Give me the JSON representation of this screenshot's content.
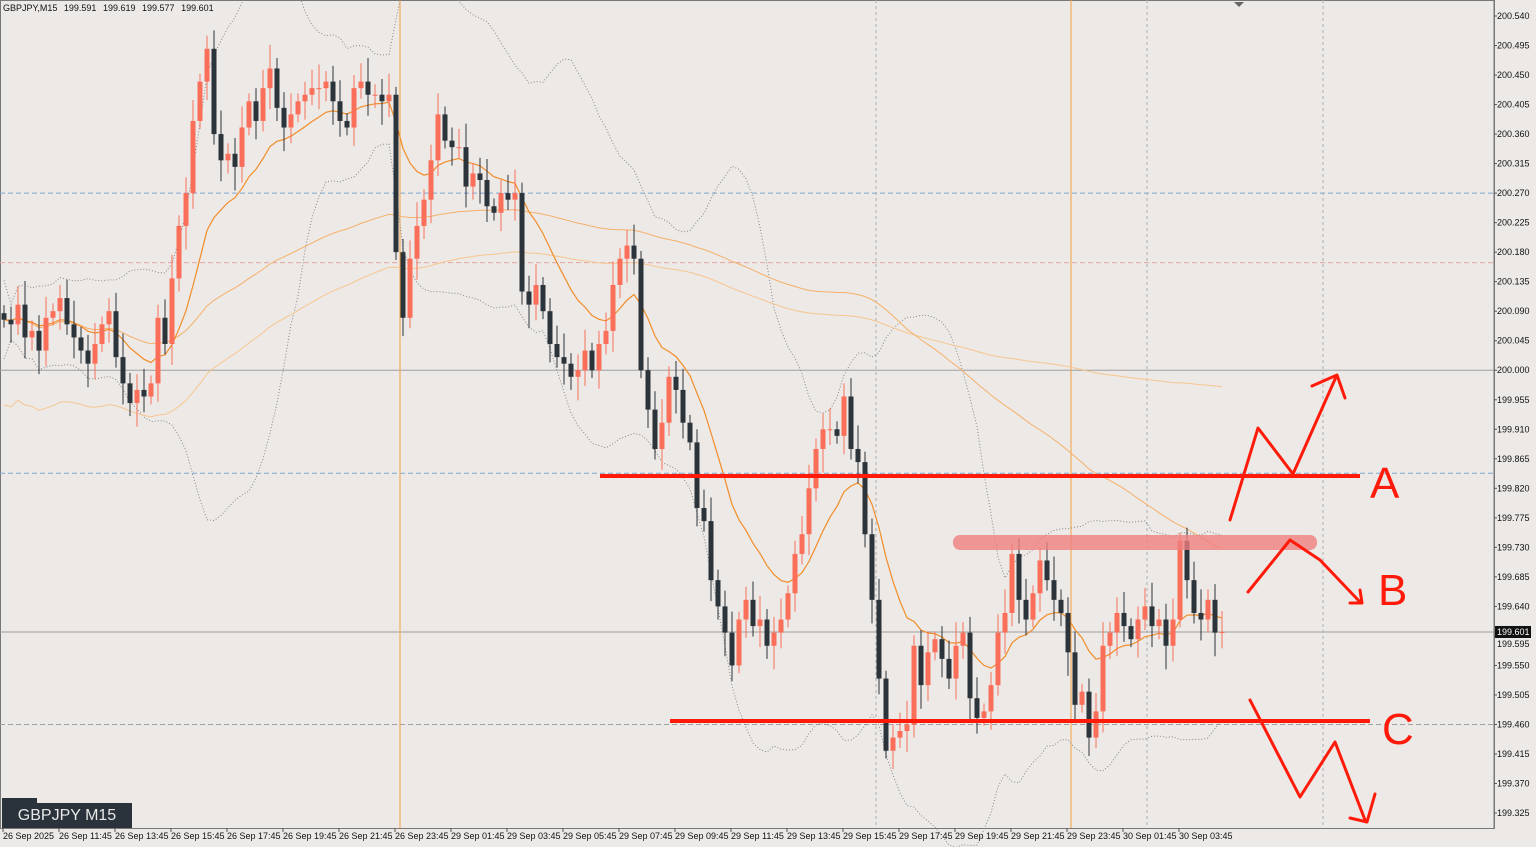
{
  "header": {
    "symbol": "GBPJPY,M15",
    "open": "199.591",
    "high": "199.619",
    "low": "199.577",
    "close": "199.601"
  },
  "badge": "GBPJPY M15",
  "colors": {
    "background": "#ece9e6",
    "bull": "#fa6e5a",
    "bear": "#2b333b",
    "ema_fast": "#f28c28",
    "ma_slow": "#f6b06a",
    "ma_slower": "#f8c58f",
    "bollinger": "#888888",
    "drawing": "#ff1a0a",
    "resistance_zone": "#f08080",
    "hline_blue": "#7fa6d6",
    "hline_pink": "#e4a5a5",
    "vline_orange": "#f5a040"
  },
  "chart_data": {
    "type": "candlestick",
    "timeframe": "M15",
    "ylim": [
      199.325,
      200.54
    ],
    "yticks": [
      "200.540",
      "200.495",
      "200.450",
      "200.405",
      "200.360",
      "200.315",
      "200.270",
      "200.225",
      "200.180",
      "200.135",
      "200.090",
      "200.045",
      "200.000",
      "199.955",
      "199.910",
      "199.865",
      "199.820",
      "199.775",
      "199.730",
      "199.685",
      "199.640",
      "199.595",
      "199.550",
      "199.505",
      "199.460",
      "199.415",
      "199.370",
      "199.325"
    ],
    "xticks": [
      "26 Sep 2025",
      "26 Sep 11:45",
      "26 Sep 13:45",
      "26 Sep 15:45",
      "26 Sep 17:45",
      "26 Sep 19:45",
      "26 Sep 21:45",
      "26 Sep 23:45",
      "29 Sep 01:45",
      "29 Sep 03:45",
      "29 Sep 05:45",
      "29 Sep 07:45",
      "29 Sep 09:45",
      "29 Sep 11:45",
      "29 Sep 13:45",
      "29 Sep 15:45",
      "29 Sep 17:45",
      "29 Sep 19:45",
      "29 Sep 21:45",
      "29 Sep 23:45",
      "30 Sep 01:45",
      "30 Sep 03:45"
    ],
    "current_price": "199.601",
    "closes": [
      200.077,
      200.07,
      200.1,
      200.05,
      200.06,
      200.03,
      200.08,
      200.09,
      200.11,
      200.07,
      200.05,
      200.03,
      200.01,
      200.04,
      200.07,
      200.09,
      200.02,
      199.98,
      199.95,
      199.97,
      199.96,
      199.98,
      200.08,
      200.04,
      200.14,
      200.22,
      200.27,
      200.38,
      200.44,
      200.49,
      200.36,
      200.32,
      200.33,
      200.31,
      200.37,
      200.41,
      200.38,
      200.43,
      200.46,
      200.4,
      200.37,
      200.39,
      200.41,
      200.42,
      200.43,
      200.43,
      200.44,
      200.41,
      200.38,
      200.37,
      200.43,
      200.44,
      200.42,
      200.42,
      200.41,
      200.42,
      200.18,
      200.08,
      200.17,
      200.22,
      200.26,
      200.32,
      200.39,
      200.35,
      200.34,
      200.34,
      200.28,
      200.3,
      200.29,
      200.25,
      200.24,
      200.27,
      200.26,
      200.27,
      200.12,
      200.1,
      200.13,
      200.09,
      200.04,
      200.02,
      200.01,
      199.99,
      200.0,
      200.03,
      200.0,
      200.04,
      200.06,
      200.13,
      200.17,
      200.19,
      200.17,
      200.0,
      199.94,
      199.88,
      199.92,
      199.99,
      199.97,
      199.92,
      199.89,
      199.79,
      199.77,
      199.68,
      199.64,
      199.6,
      199.55,
      199.62,
      199.65,
      199.61,
      199.62,
      199.58,
      199.6,
      199.62,
      199.66,
      199.72,
      199.75,
      199.82,
      199.88,
      199.91,
      199.91,
      199.9,
      199.96,
      199.88,
      199.86,
      199.75,
      199.65,
      199.53,
      199.42,
      199.44,
      199.45,
      199.46,
      199.58,
      199.52,
      199.57,
      199.59,
      199.56,
      199.53,
      199.58,
      199.6,
      199.5,
      199.47,
      199.48,
      199.52,
      199.6,
      199.63,
      199.72,
      199.65,
      199.62,
      199.66,
      199.71,
      199.68,
      199.65,
      199.63,
      199.57,
      199.49,
      199.51,
      199.44,
      199.48,
      199.58,
      199.6,
      199.63,
      199.61,
      199.59,
      199.62,
      199.64,
      199.61,
      199.62,
      199.58,
      199.62,
      199.74,
      199.68,
      199.63,
      199.62,
      199.65,
      199.6,
      199.601
    ],
    "indicators": [
      "EMA fast",
      "MA slow",
      "MA slower",
      "Bollinger Bands"
    ],
    "horizontal_lines": [
      {
        "price": 200.27,
        "style": "dashed",
        "color": "blue"
      },
      {
        "price": 200.164,
        "style": "dashed",
        "color": "pink"
      },
      {
        "price": 200.0,
        "style": "solid",
        "color": "gray"
      },
      {
        "price": 199.843,
        "style": "dashed",
        "color": "blue"
      },
      {
        "price": 199.601,
        "style": "solid",
        "color": "gray"
      },
      {
        "price": 199.46,
        "style": "dashed",
        "color": "gray"
      }
    ],
    "vertical_lines": [
      {
        "time": "26 Sep 23:45",
        "color": "orange"
      },
      {
        "time": "29 Sep 16:00",
        "color": "gray-dashed"
      },
      {
        "time": "29 Sep 23:45",
        "color": "orange"
      },
      {
        "time": "30 Sep 02:45",
        "color": "gray-dashed"
      }
    ],
    "annotations": {
      "level_A": {
        "label": "A",
        "price": 199.839,
        "scenario": "breakout up"
      },
      "level_B": {
        "label": "B",
        "price": 199.735,
        "scenario": "rejection down"
      },
      "level_C": {
        "label": "C",
        "price": 199.46,
        "scenario": "breakdown"
      }
    }
  }
}
